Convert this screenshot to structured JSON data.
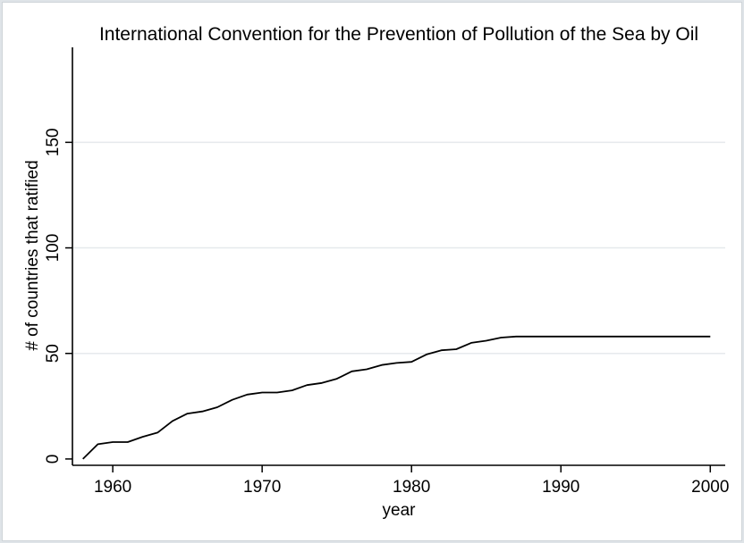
{
  "chart_data": {
    "type": "line",
    "title": "International Convention for the Prevention of Pollution of the Sea by Oil",
    "xlabel": "year",
    "ylabel": "# of countries that ratified",
    "xlim": [
      1957.3,
      2001
    ],
    "ylim": [
      -3,
      195
    ],
    "x_ticks": [
      1960,
      1970,
      1980,
      1990,
      2000
    ],
    "y_ticks": [
      0,
      50,
      100,
      150
    ],
    "grid": true,
    "series": [
      {
        "x": [
          1958,
          1959,
          1960,
          1961,
          1962,
          1963,
          1964,
          1965,
          1966,
          1967,
          1968,
          1969,
          1970,
          1971,
          1972,
          1973,
          1974,
          1975,
          1976,
          1977,
          1978,
          1979,
          1980,
          1981,
          1982,
          1983,
          1984,
          1985,
          1986,
          1987,
          1988,
          1989,
          1990,
          1991,
          1992,
          1993,
          1994,
          1995,
          1996,
          1997,
          1998,
          1999,
          2000
        ],
        "y": [
          0,
          7,
          8,
          8,
          10.5,
          12.5,
          18,
          21.5,
          22.5,
          24.5,
          28,
          30.5,
          31.5,
          31.5,
          32.5,
          35,
          36,
          38,
          41.5,
          42.5,
          44.5,
          45.5,
          46,
          49.5,
          51.5,
          52,
          55,
          56,
          57.5,
          58,
          58,
          58,
          58,
          58,
          58,
          58,
          58,
          58,
          58,
          58,
          58,
          58,
          58
        ]
      }
    ]
  }
}
